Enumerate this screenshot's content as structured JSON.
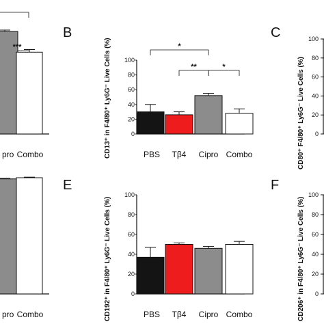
{
  "colors": {
    "PBS": "#141414",
    "Tβ4": "#ee1c1c",
    "Cipro": "#8c8c8c",
    "Combo": "#ffffff",
    "axis": "#111111"
  },
  "panels": {
    "B": {
      "letter": "B",
      "ylabel": "CD13⁺ in F4/80⁺ Ly6G⁻ Live Cells (%)"
    },
    "C": {
      "letter": "C",
      "ylabel": "CD80⁺ F4/80⁺ Ly6G⁻ Live Cells (%)"
    },
    "E": {
      "letter": "E",
      "ylabel": "CD192⁺ in F4/80⁺ Ly6G⁻ Live Cells (%)"
    },
    "F": {
      "letter": "F",
      "ylabel": "CD206⁺ in F4/80⁺ Ly6G⁻ Live Cells (%)"
    }
  },
  "chart_data": [
    {
      "id": "A-partial",
      "type": "bar",
      "categories": [
        "Cipro",
        "Combo"
      ],
      "visible_labels": [
        "pro",
        "Combo"
      ],
      "values": [
        79,
        63
      ],
      "errors": [
        1,
        2
      ],
      "ylim": [
        0,
        100
      ],
      "significance": [
        {
          "from": 0,
          "to": 1,
          "label": "***"
        }
      ]
    },
    {
      "id": "B",
      "type": "bar",
      "title": "",
      "xlabel": "",
      "ylabel": "CD13⁺ in F4/80⁺ Ly6G⁻ Live Cells (%)",
      "categories": [
        "PBS",
        "Tβ4",
        "Cipro",
        "Combo"
      ],
      "values": [
        30,
        26,
        52,
        28
      ],
      "errors": [
        10,
        4,
        3,
        6
      ],
      "ylim": [
        0,
        100
      ],
      "yticks": [
        0,
        20,
        40,
        60,
        80,
        100
      ],
      "significance": [
        {
          "from": 0,
          "to": 2,
          "label": "*"
        },
        {
          "from": 1,
          "to": 2,
          "label": "**"
        },
        {
          "from": 2,
          "to": 3,
          "label": "*"
        }
      ]
    },
    {
      "id": "C-partial",
      "type": "bar",
      "ylabel": "CD80⁺ F4/80⁺ Ly6G⁻ Live Cells (%)",
      "ylim": [
        0,
        100
      ],
      "yticks": [
        0,
        20,
        40,
        60,
        80,
        100
      ]
    },
    {
      "id": "D-partial",
      "type": "bar",
      "categories": [
        "Cipro",
        "Combo"
      ],
      "visible_labels": [
        "pro",
        "Combo"
      ],
      "values": [
        99,
        100
      ],
      "errors": [
        0.5,
        0.5
      ],
      "ylim": [
        0,
        100
      ]
    },
    {
      "id": "E",
      "type": "bar",
      "ylabel": "CD192⁺ in F4/80⁺ Ly6G⁻ Live Cells (%)",
      "categories": [
        "PBS",
        "Tβ4",
        "Cipro",
        "Combo"
      ],
      "values": [
        37,
        50,
        46,
        50
      ],
      "errors": [
        10,
        1.5,
        2,
        3
      ],
      "ylim": [
        0,
        100
      ],
      "yticks": [
        0,
        20,
        40,
        60,
        80,
        100
      ]
    },
    {
      "id": "F-partial",
      "type": "bar",
      "ylabel": "CD206⁺ in F4/80⁺ Ly6G⁻ Live Cells (%)",
      "ylim": [
        0,
        100
      ],
      "yticks": [
        0,
        20,
        40,
        60,
        80,
        100
      ]
    }
  ]
}
